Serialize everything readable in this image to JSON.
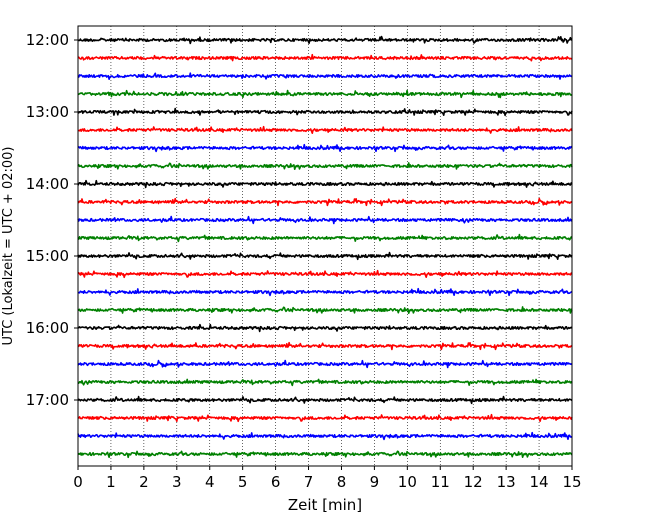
{
  "chart_data": {
    "type": "line",
    "title": "",
    "xlabel": "Zeit  [min]",
    "ylabel": "UTC (Lokalzeit = UTC + 02:00)",
    "xlim": [
      0,
      15
    ],
    "x_ticks": [
      "0",
      "1",
      "2",
      "3",
      "4",
      "5",
      "6",
      "7",
      "8",
      "9",
      "10",
      "11",
      "12",
      "13",
      "14",
      "15"
    ],
    "y_tick_labels": [
      "12:00",
      "13:00",
      "14:00",
      "15:00",
      "16:00",
      "17:00"
    ],
    "grid": "vertical dotted lines at each minute",
    "trace_interval_minutes": 15,
    "trace_start_times": [
      "12:00",
      "12:15",
      "12:30",
      "12:45",
      "13:00",
      "13:15",
      "13:30",
      "13:45",
      "14:00",
      "14:15",
      "14:30",
      "14:45",
      "15:00",
      "15:15",
      "15:30",
      "15:45",
      "16:00",
      "16:15",
      "16:30",
      "16:45",
      "17:00",
      "17:15",
      "17:30",
      "17:45"
    ],
    "trace_colors": [
      "#000000",
      "#ff0000",
      "#0000ff",
      "#008000"
    ],
    "signal": "seismogram-like noise traces, one per 15-minute window"
  }
}
